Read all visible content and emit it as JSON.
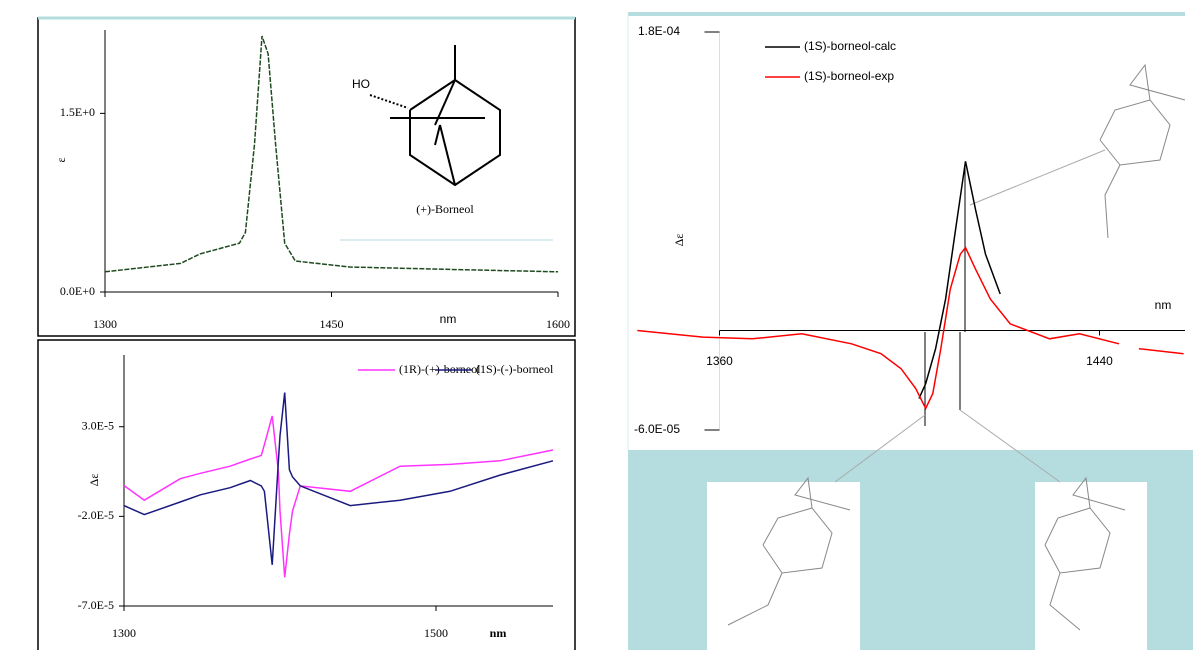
{
  "chart_data": [
    {
      "type": "line",
      "y_label": "ε",
      "x_label": "nm",
      "annotations": [
        "HO",
        "(+)-Borneol"
      ],
      "x": [
        1300,
        1350,
        1363,
        1389,
        1393,
        1399,
        1404,
        1408,
        1413,
        1419,
        1426,
        1462,
        1528,
        1600
      ],
      "values": [
        0.17,
        0.24,
        0.32,
        0.41,
        0.5,
        1.24,
        2.15,
        2.0,
        1.24,
        0.41,
        0.26,
        0.21,
        0.19,
        0.17
      ],
      "color": "#1f4a1f",
      "xlim": [
        1300,
        1600
      ],
      "xticks": [
        1300,
        1450,
        1600
      ],
      "ylim": [
        0,
        2.2
      ],
      "yticks": [
        {
          "value": 0,
          "label": "0.0E+0"
        },
        {
          "value": 1.5,
          "label": "1.5E+0"
        }
      ]
    },
    {
      "type": "line",
      "y_label": "Δε",
      "x_label": "nm",
      "x": [
        1300,
        1313,
        1336,
        1349,
        1368,
        1381,
        1388,
        1390,
        1395,
        1399,
        1400,
        1403,
        1406,
        1408,
        1413,
        1445,
        1477,
        1509,
        1541,
        1575
      ],
      "series": [
        {
          "name": "(1R)-(+)-borneol",
          "color": "#ff33ff",
          "values": [
            -2.8e-06,
            -1.1e-05,
            1e-06,
            4e-06,
            8e-06,
            1.2e-05,
            1.4e-05,
            2e-05,
            3.6e-05,
            5e-06,
            -1.7e-05,
            -5.4e-05,
            -3e-05,
            -1.7e-05,
            -3e-06,
            -6e-06,
            8e-06,
            9e-06,
            1.1e-05,
            1.7e-05
          ]
        },
        {
          "name": "(1S)-(-)-borneol",
          "color": "#1a1a80",
          "values": [
            -1.4e-05,
            -1.9e-05,
            -1.2e-05,
            -8e-06,
            -4e-06,
            0.0,
            -3e-06,
            -6e-06,
            -4.7e-05,
            1.1e-05,
            2.5e-05,
            4.9e-05,
            6e-06,
            2e-06,
            -3e-06,
            -1.4e-05,
            -1.1e-05,
            -6e-06,
            3e-06,
            1.1e-05
          ]
        }
      ],
      "xlim": [
        1300,
        1575
      ],
      "xticks": [
        1300,
        1500
      ],
      "ylim": [
        -7e-05,
        7e-05
      ],
      "yticks": [
        {
          "value": 3e-05,
          "label": "3.0E-5"
        },
        {
          "value": -2e-05,
          "label": "-2.0E-5"
        },
        {
          "value": -7e-05,
          "label": "-7.0E-5"
        }
      ]
    },
    {
      "type": "line",
      "y_label": "Δε",
      "x_label": "nm",
      "series": [
        {
          "name": "(1S)-borneol-calc",
          "color": "#000000",
          "x": [
            1402,
            1403.4,
            1405.5,
            1407.6,
            1409.7,
            1411.8,
            1413.9,
            1416,
            1419.1
          ],
          "values": [
            -4.1e-05,
            -3.2e-05,
            -1.1e-05,
            1.9e-05,
            6.1e-05,
            0.000102,
            7.3e-05,
            4.6e-05,
            2.2e-05
          ]
        },
        {
          "name": "(1S)-borneol-exp",
          "color": "#ff0000",
          "x": [
            1342.7,
            1356.5,
            1366.9,
            1377.3,
            1387.8,
            1394,
            1398.2,
            1401.3,
            1403.4,
            1404.9,
            1406.6,
            1408.6,
            1410.7,
            1411.8,
            1413.9,
            1417,
            1421.2,
            1429.5,
            1435.8,
            1444.1,
            1446,
            1448.3,
            1457.7
          ],
          "values": [
            0.0,
            -4e-06,
            -5e-06,
            -2e-06,
            -8e-06,
            -1.4e-05,
            -2.3e-05,
            -3.5e-05,
            -4.7e-05,
            -3.8e-05,
            -1.1e-05,
            2.5e-05,
            4.6e-05,
            5e-05,
            3.7e-05,
            1.9e-05,
            4e-06,
            -5e-06,
            -2e-06,
            -8e-06,
            null,
            -1.1e-05,
            -1.4e-05
          ]
        }
      ],
      "xlim": [
        1342,
        1458
      ],
      "xticks": [
        1360,
        1440
      ],
      "ylim": [
        -6e-05,
        0.00018
      ],
      "yticks": [
        {
          "value": 0.00018,
          "label": "1.8E-04"
        },
        {
          "value": -6e-05,
          "label": "-6.0E-05"
        }
      ]
    }
  ]
}
